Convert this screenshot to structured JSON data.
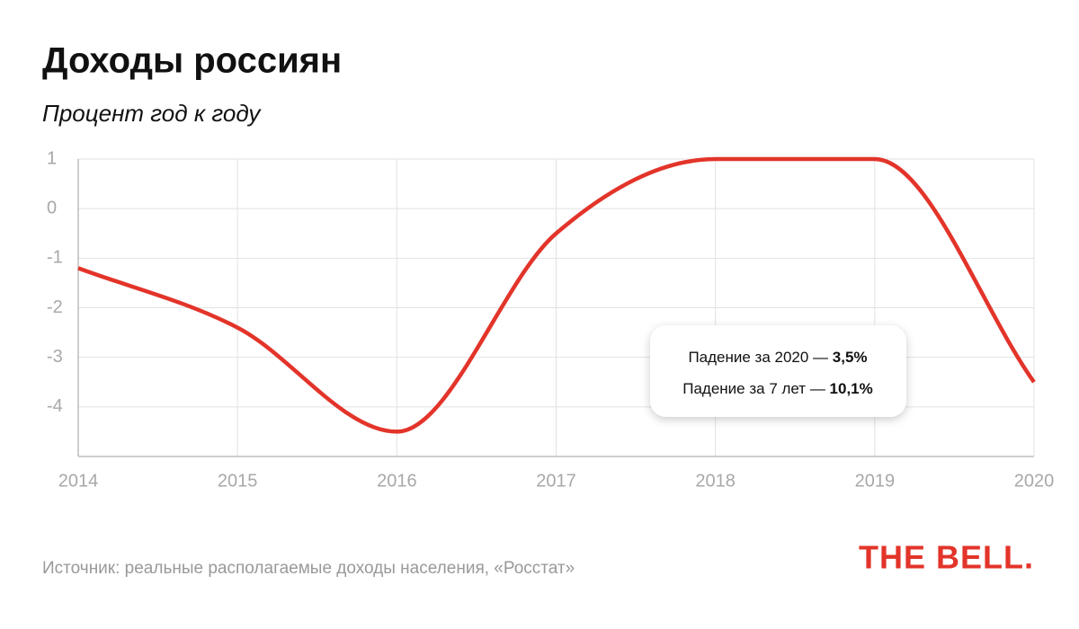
{
  "chart_data": {
    "type": "line",
    "title": "Доходы россиян",
    "subtitle": "Процент год к году",
    "x": [
      2014,
      2015,
      2016,
      2017,
      2018,
      2019,
      2020
    ],
    "values": [
      -1.2,
      -2.4,
      -4.5,
      -0.5,
      1,
      1,
      -3.5
    ],
    "color": "#e3342a",
    "xlim": [
      2014,
      2020
    ],
    "xticks": [
      2014,
      2015,
      2016,
      2017,
      2018,
      2019,
      2020
    ],
    "ylim": [
      -5,
      1
    ],
    "yticks": [
      1,
      0,
      -1,
      -2,
      -3,
      -4
    ],
    "grid": true,
    "annotations": [
      {
        "text": "Падение за 2020 — ",
        "value": "3,5%"
      },
      {
        "text": "Падение за 7 лет — ",
        "value": "10,1%"
      }
    ],
    "source": "Источник: реальные располагаемые доходы населения, «Росстат»",
    "logo": "THE BELL."
  }
}
